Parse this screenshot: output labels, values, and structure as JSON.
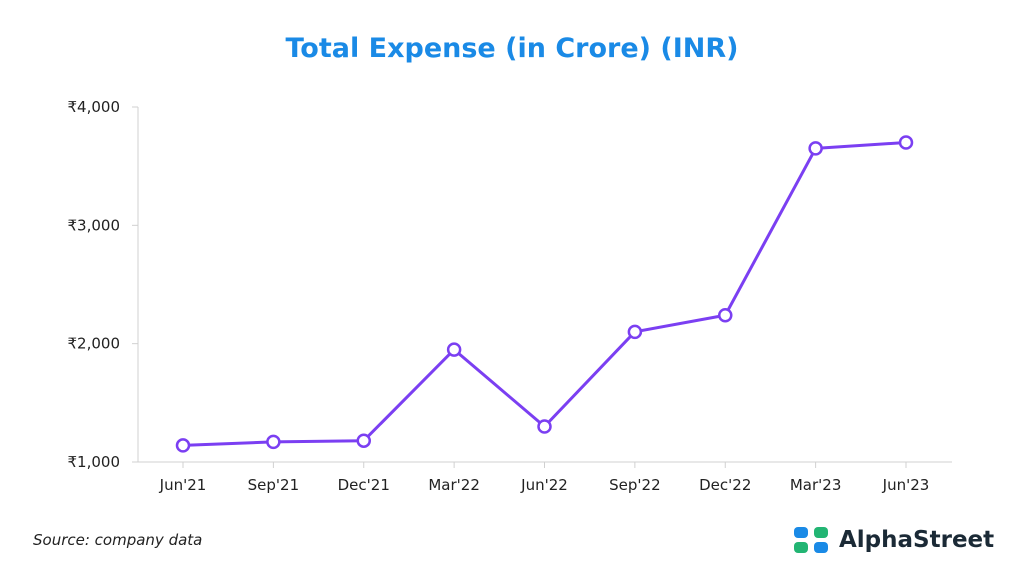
{
  "chart_data": {
    "type": "line",
    "title": "Total Expense (in Crore) (INR)",
    "xlabel": "",
    "ylabel": "",
    "categories": [
      "Jun'21",
      "Sep'21",
      "Dec'21",
      "Mar'22",
      "Jun'22",
      "Sep'22",
      "Dec'22",
      "Mar'23",
      "Jun'23"
    ],
    "series": [
      {
        "values": [
          1140,
          1170,
          1180,
          1950,
          1300,
          2100,
          2240,
          3650,
          3700
        ]
      }
    ],
    "ylim": [
      1000,
      4000
    ],
    "yticks": [
      1000,
      2000,
      3000,
      4000
    ],
    "ytick_labels": [
      "₹1,000",
      "₹2,000",
      "₹3,000",
      "₹4,000"
    ],
    "grid": false,
    "colors": {
      "line": "#7b3ff2",
      "marker_fill": "#ffffff",
      "axis": "#d0d0d0",
      "title": "#1a8ae6"
    }
  },
  "footer": {
    "source": "Source: company data",
    "brand": "AlphaStreet",
    "brand_icon": "alphastreet-logo-icon"
  }
}
